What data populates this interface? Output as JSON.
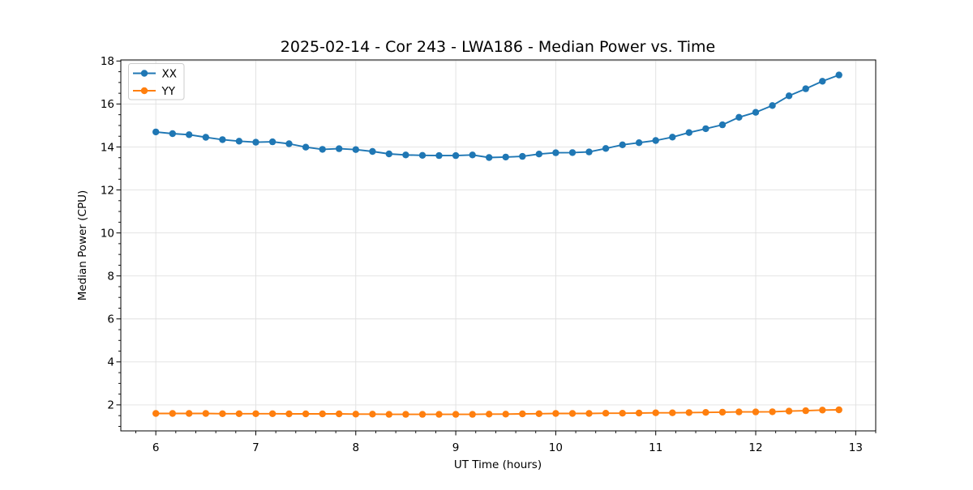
{
  "figure": {
    "background": "#ffffff",
    "spine_color": "#000000",
    "grid_color": "#e0e0e0",
    "text_color": "#000000"
  },
  "chart_data": {
    "type": "line",
    "title": "2025-02-14 - Cor 243 - LWA186 - Median Power vs. Time",
    "xlabel": "UT Time (hours)",
    "ylabel": "Median Power (CPU)",
    "xlim": [
      5.65,
      13.2
    ],
    "ylim": [
      0.79,
      18.05
    ],
    "x_major_ticks": [
      6,
      7,
      8,
      9,
      10,
      11,
      12,
      13
    ],
    "y_major_ticks": [
      2,
      4,
      6,
      8,
      10,
      12,
      14,
      16,
      18
    ],
    "x_minor_step": 0.2,
    "y_minor_step": 0.5,
    "grid": true,
    "legend_position": "upper left",
    "legend_entries": [
      "XX",
      "YY"
    ],
    "x": [
      6.0,
      6.167,
      6.333,
      6.5,
      6.667,
      6.833,
      7.0,
      7.167,
      7.333,
      7.5,
      7.667,
      7.833,
      8.0,
      8.167,
      8.333,
      8.5,
      8.667,
      8.833,
      9.0,
      9.167,
      9.333,
      9.5,
      9.667,
      9.833,
      10.0,
      10.167,
      10.333,
      10.5,
      10.667,
      10.833,
      11.0,
      11.167,
      11.333,
      11.5,
      11.667,
      11.833,
      12.0,
      12.167,
      12.333,
      12.5,
      12.667,
      12.833
    ],
    "series": [
      {
        "name": "XX",
        "color": "#1f77b4",
        "values": [
          14.7,
          14.62,
          14.57,
          14.45,
          14.34,
          14.27,
          14.22,
          14.24,
          14.15,
          13.99,
          13.89,
          13.92,
          13.88,
          13.79,
          13.68,
          13.63,
          13.61,
          13.6,
          13.6,
          13.63,
          13.51,
          13.53,
          13.56,
          13.67,
          13.73,
          13.74,
          13.77,
          13.93,
          14.1,
          14.2,
          14.3,
          14.46,
          14.67,
          14.85,
          15.03,
          15.38,
          15.61,
          15.93,
          16.38,
          16.71,
          17.06,
          17.35
        ]
      },
      {
        "name": "YY",
        "color": "#ff7f0e",
        "values": [
          1.6,
          1.6,
          1.6,
          1.6,
          1.59,
          1.59,
          1.59,
          1.59,
          1.58,
          1.58,
          1.58,
          1.58,
          1.57,
          1.57,
          1.56,
          1.56,
          1.56,
          1.56,
          1.56,
          1.56,
          1.57,
          1.57,
          1.58,
          1.59,
          1.6,
          1.6,
          1.6,
          1.61,
          1.61,
          1.62,
          1.63,
          1.63,
          1.64,
          1.65,
          1.66,
          1.67,
          1.67,
          1.68,
          1.71,
          1.73,
          1.76,
          1.77
        ]
      }
    ]
  }
}
